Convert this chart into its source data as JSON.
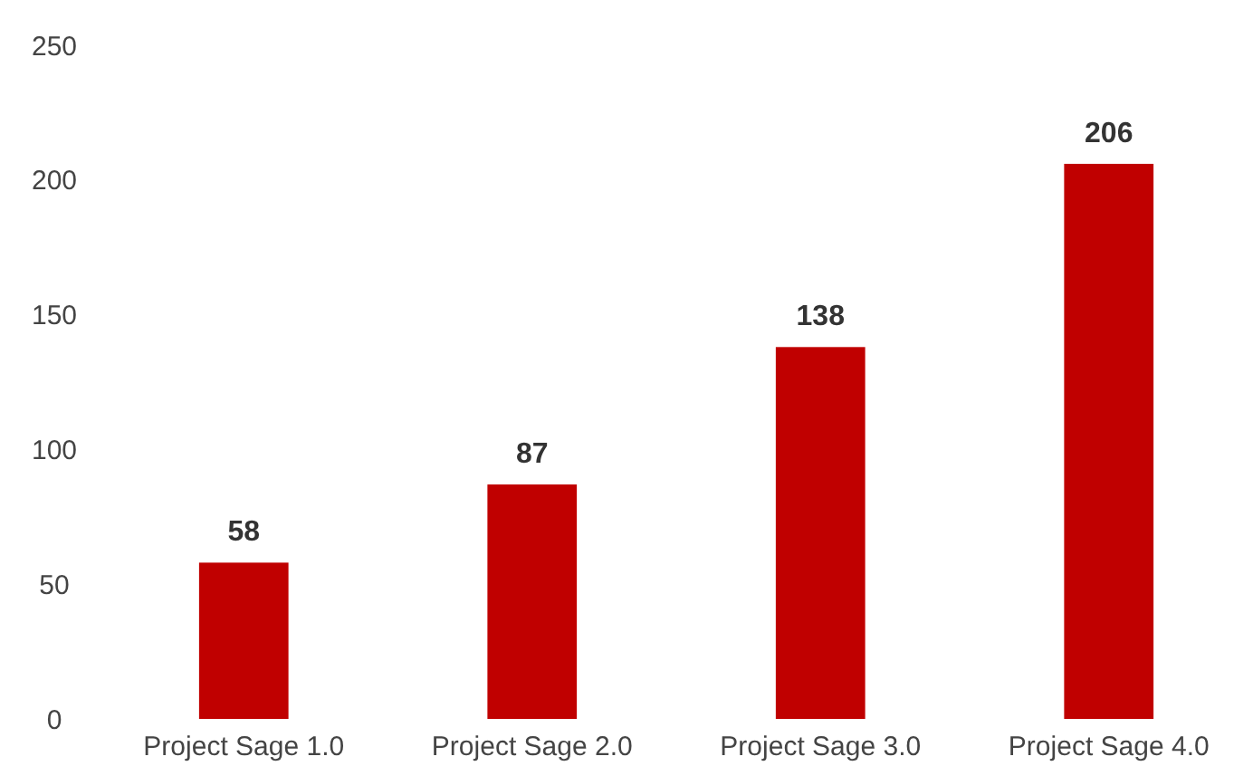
{
  "chart_data": {
    "type": "bar",
    "categories": [
      "Project Sage 1.0",
      "Project Sage 2.0",
      "Project Sage 3.0",
      "Project Sage 4.0"
    ],
    "values": [
      58,
      87,
      138,
      206
    ],
    "color": "#c00000",
    "ylim": [
      0,
      250
    ],
    "yticks": [
      0,
      50,
      100,
      150,
      200,
      250
    ],
    "grid": false,
    "data_labels": true
  }
}
